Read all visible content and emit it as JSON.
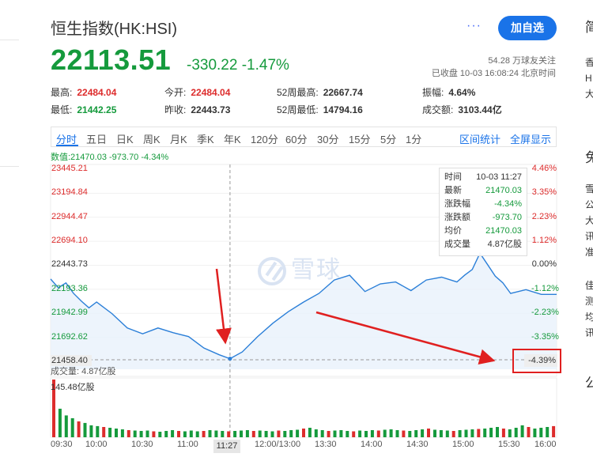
{
  "header": {
    "title": "恒生指数(HK:HSI)",
    "more": "···",
    "follow_button": "加自选",
    "price": "22113.51",
    "change": "-330.22 -1.47%",
    "followers": "54.28 万球友关注",
    "status": "已收盘 10-03 16:08:24 北京时间"
  },
  "quote": {
    "high_label": "最高:",
    "high": "22484.04",
    "low_label": "最低:",
    "low": "21442.25",
    "open_label": "今开:",
    "open": "22484.04",
    "prev_close_label": "昨收:",
    "prev_close": "22443.73",
    "w52_high_label": "52周最高:",
    "w52_high": "22667.74",
    "w52_low_label": "52周最低:",
    "w52_low": "14794.16",
    "amplitude_label": "振幅:",
    "amplitude": "4.64%",
    "turnover_label": "成交额:",
    "turnover": "3103.44亿"
  },
  "tabs": {
    "items": [
      "分时",
      "五日",
      "日K",
      "周K",
      "月K",
      "季K",
      "年K",
      "120分",
      "60分",
      "30分",
      "15分",
      "5分",
      "1分"
    ],
    "active": "分时",
    "range_stats": "区间统计",
    "fullscreen": "全屏显示"
  },
  "chart_info": "数值:21470.03 -973.70 -4.34%",
  "tooltip": {
    "time_label": "时间",
    "time": "10-03 11:27",
    "latest_label": "最新",
    "latest": "21470.03",
    "pct_label": "涨跌幅",
    "pct": "-4.34%",
    "chg_label": "涨跌额",
    "chg": "-973.70",
    "avg_label": "均价",
    "avg": "21470.03",
    "vol_label": "成交量",
    "vol": "4.87亿股"
  },
  "watermark": "雪球",
  "volume_label": "成交量: 4.87亿股",
  "volume_max": "145.48亿股",
  "cursor": {
    "time": "11:27",
    "price": "21458.40",
    "pct": "-4.39%"
  },
  "right_column": [
    "简",
    "香",
    "H",
    "大",
    "免",
    "雪",
    "公",
    "大",
    "讯",
    "准",
    "佳",
    "测",
    "均",
    "讯",
    "公"
  ],
  "colors": {
    "up": "#dd2c2c",
    "down": "#159a3c",
    "line": "#2b7fd8",
    "accent": "#1a73e8",
    "annotation": "#e02020"
  },
  "chart_data": {
    "type": "line",
    "title": "",
    "prev_close": 22443.73,
    "ylim": [
      21458.4,
      23445.21
    ],
    "y_ticks_left": [
      "23445.21",
      "23194.84",
      "22944.47",
      "22694.10",
      "22443.73",
      "22193.36",
      "21942.99",
      "21692.62",
      "21458.40"
    ],
    "y_ticks_right": [
      "4.46%",
      "3.35%",
      "2.23%",
      "1.12%",
      "0.00%",
      "-1.12%",
      "-2.23%",
      "-3.35%",
      "-4.39%"
    ],
    "x_ticks": [
      "09:30",
      "10:00",
      "10:30",
      "11:00",
      "11:27",
      "12:00/13:00",
      "13:30",
      "14:00",
      "14:30",
      "15:00",
      "15:30",
      "16:00"
    ],
    "series": [
      {
        "x": [
          "09:30",
          "09:35",
          "09:40",
          "09:45",
          "09:50",
          "09:55",
          "10:00",
          "10:10",
          "10:20",
          "10:30",
          "10:40",
          "10:50",
          "11:00",
          "11:10",
          "11:20",
          "11:27",
          "11:35",
          "11:45",
          "11:55",
          "13:05",
          "13:15",
          "13:25",
          "13:35",
          "13:45",
          "13:55",
          "14:05",
          "14:15",
          "14:25",
          "14:35",
          "14:45",
          "14:55",
          "15:00",
          "15:05",
          "15:10",
          "15:15",
          "15:20",
          "15:25",
          "15:30",
          "15:40",
          "15:50",
          "16:00"
        ],
        "values": [
          22300,
          22210,
          22260,
          22150,
          22070,
          22000,
          22060,
          21940,
          21790,
          21730,
          21790,
          21740,
          21700,
          21580,
          21510,
          21470,
          21540,
          21700,
          21840,
          21960,
          22060,
          22150,
          22290,
          22340,
          22170,
          22250,
          22270,
          22180,
          22290,
          22320,
          22270,
          22340,
          22400,
          22570,
          22450,
          22330,
          22260,
          22150,
          22190,
          22140,
          22140
        ]
      }
    ],
    "volume": {
      "max": 145.48,
      "values": [
        145.48,
        72,
        55,
        48,
        40,
        36,
        30,
        28,
        26,
        24,
        22,
        20,
        18,
        17,
        16,
        17,
        15,
        14,
        16,
        18,
        16,
        15,
        17,
        15,
        16,
        18,
        17,
        16,
        15,
        16,
        17,
        18,
        16,
        17,
        16,
        15,
        17,
        16,
        18,
        19,
        22,
        24,
        20,
        18,
        16,
        17,
        18,
        16,
        15,
        17,
        16,
        18,
        17,
        19,
        20,
        18,
        17,
        16,
        18,
        20,
        22,
        19,
        18,
        17,
        16,
        18,
        19,
        20,
        21,
        22,
        24,
        26,
        22,
        20,
        24,
        30,
        26,
        22,
        24,
        26,
        28
      ]
    }
  }
}
